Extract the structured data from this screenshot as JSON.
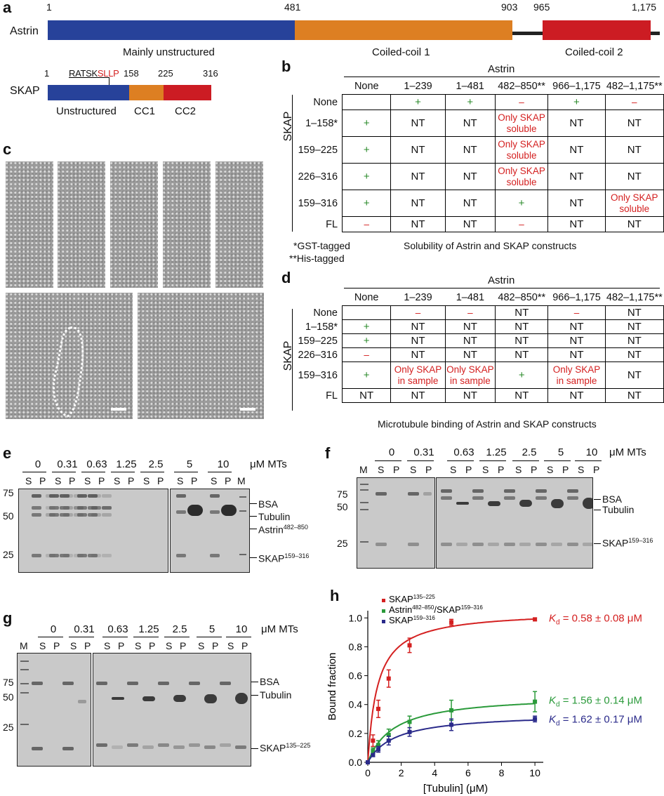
{
  "panel_a": {
    "label": "a",
    "astrin": {
      "name": "Astrin",
      "ticks": [
        "1",
        "481",
        "903",
        "965",
        "1,175"
      ],
      "domains": [
        "Mainly unstructured",
        "Coiled-coil 1",
        "Coiled-coil 2"
      ]
    },
    "skap": {
      "name": "SKAP",
      "ticks": [
        "1",
        "158",
        "225",
        "316"
      ],
      "motif_black": "RATSK",
      "motif_red": "SLLP",
      "domains": [
        "Unstructured",
        "CC1",
        "CC2"
      ]
    }
  },
  "panel_b": {
    "label": "b",
    "group_title": "Astrin",
    "row_axis": "SKAP",
    "columns": [
      "None",
      "1–239",
      "1–481",
      "482–850**",
      "966–1,175",
      "482–1,175**"
    ],
    "rows": [
      {
        "label": "None",
        "cells": [
          "",
          "+",
          "+",
          "–",
          "+",
          "–"
        ]
      },
      {
        "label": "1–158*",
        "cells": [
          "+",
          "NT",
          "NT",
          "Only SKAP soluble",
          "NT",
          "NT"
        ]
      },
      {
        "label": "159–225",
        "cells": [
          "+",
          "NT",
          "NT",
          "Only SKAP soluble",
          "NT",
          "NT"
        ]
      },
      {
        "label": "226–316",
        "cells": [
          "+",
          "NT",
          "NT",
          "Only SKAP soluble",
          "NT",
          "NT"
        ]
      },
      {
        "label": "159–316",
        "cells": [
          "+",
          "NT",
          "NT",
          "+",
          "NT",
          "Only SKAP soluble"
        ]
      },
      {
        "label": "FL",
        "cells": [
          "–",
          "NT",
          "NT",
          "–",
          "NT",
          "NT"
        ]
      }
    ],
    "footnote1": "*GST-tagged",
    "footnote2": "**His-tagged",
    "caption": "Solubility of Astrin and SKAP constructs"
  },
  "panel_c": {
    "label": "c"
  },
  "panel_d": {
    "label": "d",
    "group_title": "Astrin",
    "row_axis": "SKAP",
    "columns": [
      "None",
      "1–239",
      "1–481",
      "482–850**",
      "966–1,175",
      "482–1,175**"
    ],
    "rows": [
      {
        "label": "None",
        "cells": [
          "",
          "–",
          "–",
          "NT",
          "–",
          "NT"
        ]
      },
      {
        "label": "1–158*",
        "cells": [
          "+",
          "NT",
          "NT",
          "NT",
          "NT",
          "NT"
        ]
      },
      {
        "label": "159–225",
        "cells": [
          "+",
          "NT",
          "NT",
          "NT",
          "NT",
          "NT"
        ]
      },
      {
        "label": "226–316",
        "cells": [
          "–",
          "NT",
          "NT",
          "NT",
          "NT",
          "NT"
        ]
      },
      {
        "label": "159–316",
        "cells": [
          "+",
          "Only SKAP in sample",
          "Only SKAP in sample",
          "+",
          "Only SKAP in sample",
          "NT"
        ]
      },
      {
        "label": "FL",
        "cells": [
          "NT",
          "NT",
          "NT",
          "NT",
          "NT",
          "NT"
        ]
      }
    ],
    "caption": "Microtubule binding of Astrin and SKAP constructs"
  },
  "panel_e": {
    "label": "e",
    "conc": [
      "0",
      "0.31",
      "0.63",
      "1.25",
      "2.5",
      "5",
      "10"
    ],
    "unit": "μM MTs",
    "lanes": [
      "S",
      "P",
      "M"
    ],
    "markers": [
      "75",
      "50",
      "25"
    ],
    "bands": [
      "BSA",
      "Tubulin",
      "Astrin",
      "482–850",
      "SKAP",
      "159–316"
    ]
  },
  "panel_f": {
    "label": "f",
    "conc": [
      "0",
      "0.31",
      "0.63",
      "1.25",
      "2.5",
      "5",
      "10"
    ],
    "unit": "μM MTs",
    "lanes": [
      "M",
      "S",
      "P"
    ],
    "markers": [
      "75",
      "50",
      "25"
    ],
    "bands": [
      "BSA",
      "Tubulin",
      "SKAP",
      "159–316"
    ]
  },
  "panel_g": {
    "label": "g",
    "conc": [
      "0",
      "0.31",
      "0.63",
      "1.25",
      "2.5",
      "5",
      "10"
    ],
    "unit": "μM MTs",
    "lanes": [
      "M",
      "S",
      "P"
    ],
    "markers": [
      "75",
      "50",
      "25"
    ],
    "bands": [
      "BSA",
      "Tubulin",
      "SKAP",
      "135–225"
    ]
  },
  "panel_h": {
    "label": "h",
    "legend": [
      {
        "base": "SKAP",
        "sup": "135–225",
        "color": "#d42020"
      },
      {
        "base": "Astrin",
        "sup": "482–850",
        "base2": "/SKAP",
        "sup2": "159–316",
        "color": "#2a9a3a"
      },
      {
        "base": "SKAP",
        "sup": "159–316",
        "color": "#2a2a8a"
      }
    ],
    "kd_labels": [
      {
        "k": "K",
        "sub": "d",
        "text": " = 0.58 ± 0.08 μM",
        "color": "#d42020"
      },
      {
        "k": "K",
        "sub": "d",
        "text": " = 1.56 ± 0.14 μM",
        "color": "#2a9a3a"
      },
      {
        "k": "K",
        "sub": "d",
        "text": " = 1.62 ± 0.17 μM",
        "color": "#2a2a8a"
      }
    ]
  },
  "chart_data": {
    "type": "scatter",
    "xlabel": "[Tubulin] (μM)",
    "ylabel": "Bound fraction",
    "xlim": [
      0,
      10.5
    ],
    "ylim": [
      0,
      1.05
    ],
    "xticks": [
      "0",
      "2",
      "4",
      "6",
      "8",
      "10"
    ],
    "yticks": [
      "0.0",
      "0.2",
      "0.4",
      "0.6",
      "0.8",
      "1.0"
    ],
    "series": [
      {
        "name": "SKAP135–225",
        "color": "#d42020",
        "fit_max": 1.05,
        "fit_kd": 0.58,
        "x": [
          0,
          0.31,
          0.63,
          1.25,
          2.5,
          5,
          10
        ],
        "y": [
          0,
          0.15,
          0.37,
          0.58,
          0.81,
          0.97,
          0.99
        ],
        "err": [
          0,
          0.04,
          0.06,
          0.06,
          0.05,
          0.02,
          0.01
        ]
      },
      {
        "name": "Astrin482–850/SKAP159–316",
        "color": "#2a9a3a",
        "fit_max": 0.47,
        "fit_kd": 1.56,
        "x": [
          0,
          0.31,
          0.63,
          1.25,
          2.5,
          5,
          10
        ],
        "y": [
          0,
          0.08,
          0.12,
          0.19,
          0.28,
          0.36,
          0.42
        ],
        "err": [
          0,
          0.02,
          0.03,
          0.04,
          0.04,
          0.07,
          0.07
        ]
      },
      {
        "name": "SKAP159–316",
        "color": "#2a2a8a",
        "fit_max": 0.34,
        "fit_kd": 1.62,
        "x": [
          0,
          0.31,
          0.63,
          1.25,
          2.5,
          5,
          10
        ],
        "y": [
          0,
          0.05,
          0.09,
          0.15,
          0.21,
          0.26,
          0.3
        ],
        "err": [
          0,
          0.01,
          0.02,
          0.03,
          0.03,
          0.04,
          0.02
        ]
      }
    ]
  }
}
